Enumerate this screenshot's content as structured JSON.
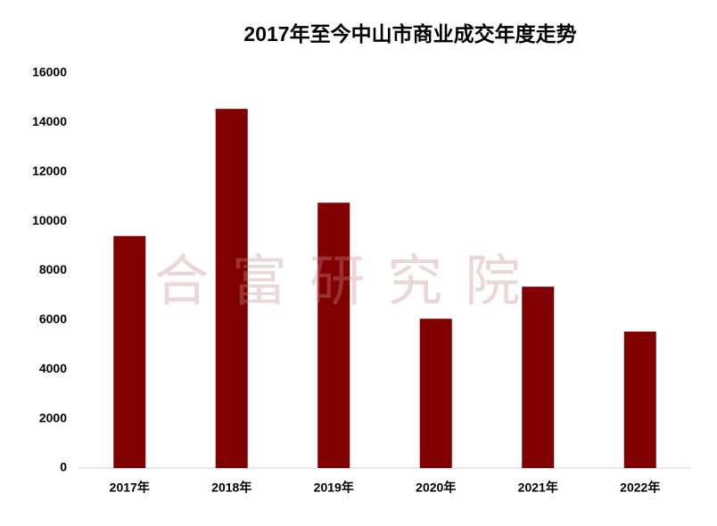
{
  "chart_data": {
    "type": "bar",
    "title": "2017年至今中山市商业成交年度走势",
    "watermark": "合 富 研 究 院",
    "categories": [
      "2017年",
      "2018年",
      "2019年",
      "2020年",
      "2021年",
      "2022年"
    ],
    "values": [
      9400,
      14550,
      10750,
      6050,
      7350,
      5530
    ],
    "color": "#800000",
    "ylim": [
      0,
      16000
    ],
    "yticks": [
      0,
      2000,
      4000,
      6000,
      8000,
      10000,
      12000,
      14000,
      16000
    ],
    "grid": false
  }
}
